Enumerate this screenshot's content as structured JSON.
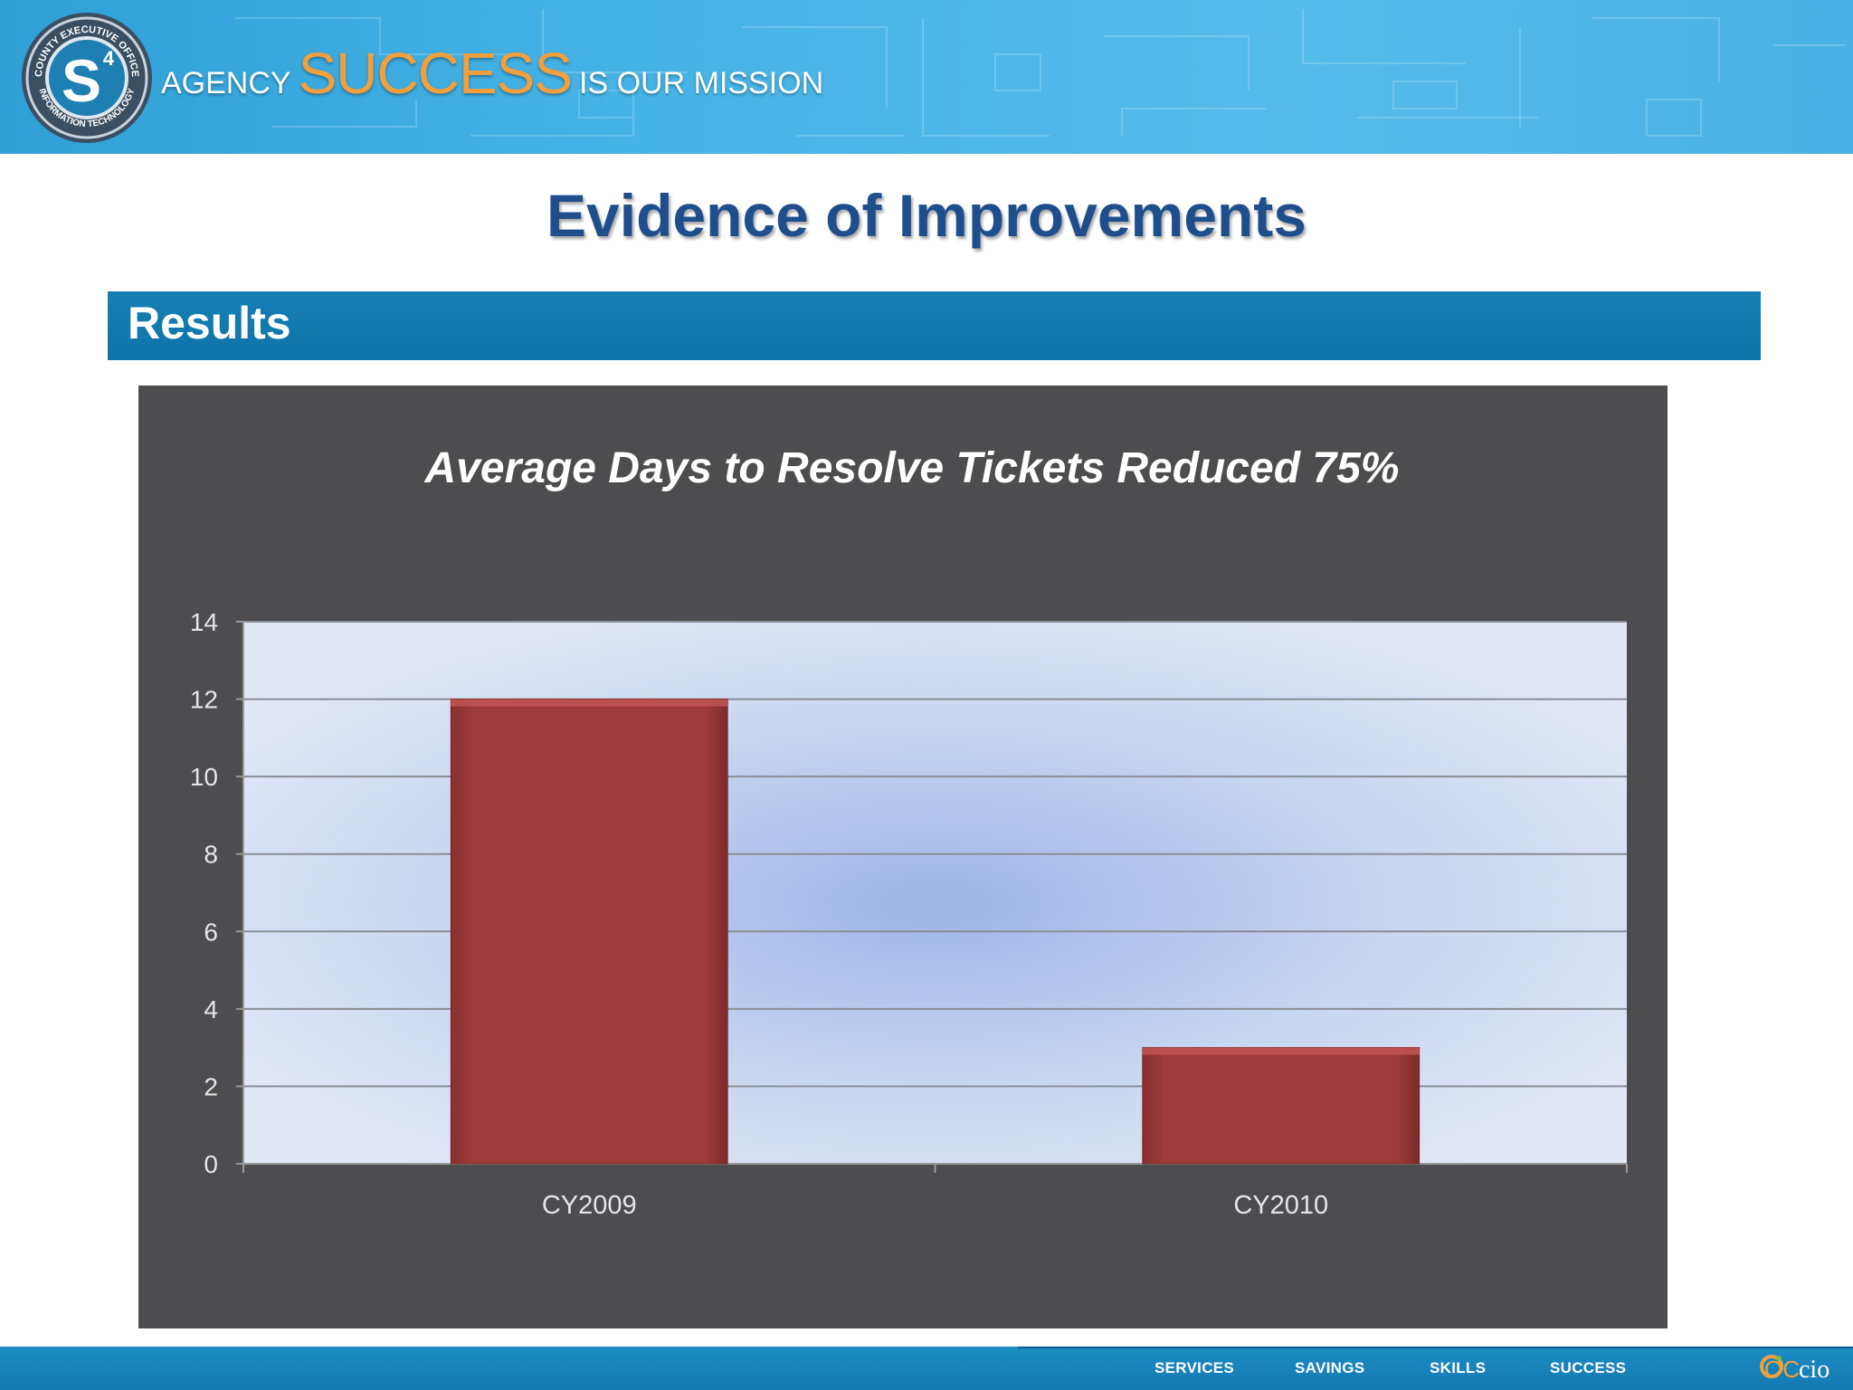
{
  "banner": {
    "tagline_agency": "AGENCY",
    "tagline_success": "SUCCESS",
    "tagline_mission": "IS OUR MISSION",
    "logo_ring_top": "COUNTY EXECUTIVE OFFICE",
    "logo_ring_bottom": "INFORMATION TECHNOLOGY",
    "logo_mark": "S",
    "logo_superscript": "4"
  },
  "page_title": "Evidence of Improvements",
  "section_title": "Results",
  "chart_data": {
    "type": "bar",
    "title": "Average Days to Resolve Tickets Reduced 75%",
    "categories": [
      "CY2009",
      "CY2010"
    ],
    "values": [
      12,
      3
    ],
    "ylim": [
      0,
      14
    ],
    "yticks": [
      0,
      2,
      4,
      6,
      8,
      10,
      12,
      14
    ],
    "xlabel": "",
    "ylabel": "",
    "grid": true,
    "legend": "none",
    "bar_color": "#9e3a3b",
    "plot_background": "#c9d6f1",
    "panel_background": "#4d4c4e"
  },
  "footer": {
    "nav": [
      "SERVICES",
      "SAVINGS",
      "SKILLS",
      "SUCCESS"
    ],
    "logo_text_oc": "OC",
    "logo_text_cio": "cio"
  },
  "colors": {
    "brand_blue": "#1e4f8c",
    "accent_orange": "#f2a03d",
    "section_blue": "#127aae"
  }
}
